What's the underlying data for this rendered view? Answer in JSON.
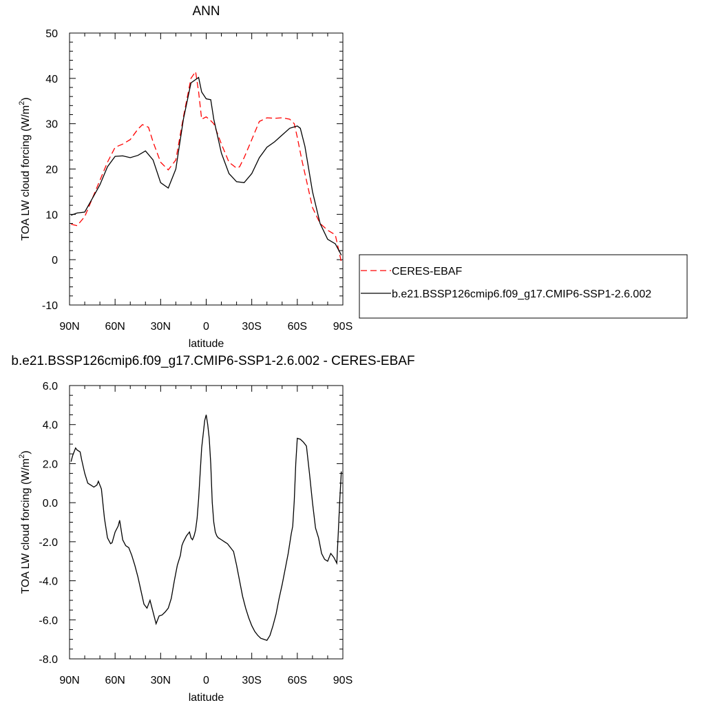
{
  "chart_data": [
    {
      "type": "line",
      "title": "ANN",
      "xlabel": "latitude",
      "ylabel": "TOA LW cloud forcing (W/m²)",
      "ylabel_main": "TOA LW cloud forcing (W/m",
      "ylabel_sup": "2",
      "ylabel_close": ")",
      "xlim": [
        90,
        -90
      ],
      "ylim": [
        -10,
        50
      ],
      "x_ticks": [
        90,
        60,
        30,
        0,
        -30,
        -60,
        -90
      ],
      "x_tick_labels": [
        "90N",
        "60N",
        "30N",
        "0",
        "30S",
        "60S",
        "90S"
      ],
      "y_ticks": [
        -10,
        0,
        10,
        20,
        30,
        40,
        50
      ],
      "y_tick_labels": [
        "-10",
        "0",
        "10",
        "20",
        "30",
        "40",
        "50"
      ],
      "legend_position": "right",
      "series": [
        {
          "name": "CERES-EBAF",
          "color": "#ff0000",
          "style": "dashed",
          "x": [
            89,
            85,
            80,
            75,
            70,
            65,
            60,
            55,
            50,
            45,
            42,
            38,
            35,
            30,
            25,
            20,
            15,
            10,
            7,
            5,
            3,
            0,
            -2,
            -5,
            -10,
            -15,
            -20,
            -22,
            -25,
            -30,
            -35,
            -40,
            -45,
            -50,
            -55,
            -58,
            -60,
            -63,
            -65,
            -70,
            -75,
            -80,
            -85,
            -89
          ],
          "y": [
            7.8,
            7.5,
            9.5,
            13.5,
            17.5,
            21.5,
            24.8,
            25.5,
            26.5,
            28.8,
            29.8,
            29.2,
            26.0,
            21.5,
            19.8,
            22.0,
            31.5,
            40.0,
            41.5,
            37.0,
            31.0,
            31.5,
            31.0,
            30.0,
            25.5,
            21.5,
            20.2,
            20.5,
            22.5,
            26.5,
            30.5,
            31.3,
            31.2,
            31.3,
            31.0,
            30.0,
            27.0,
            22.0,
            19.0,
            11.5,
            8.0,
            6.5,
            5.5,
            -0.5
          ]
        },
        {
          "name": "b.e21.BSSP126cmip6.f09_g17.CMIP6-SSP1-2.6.002",
          "color": "#000000",
          "style": "solid",
          "x": [
            89,
            85,
            80,
            75,
            70,
            65,
            60,
            55,
            50,
            45,
            40,
            35,
            30,
            25,
            20,
            15,
            10,
            5,
            3,
            0,
            -3,
            -5,
            -10,
            -15,
            -20,
            -25,
            -30,
            -35,
            -40,
            -45,
            -50,
            -55,
            -60,
            -62,
            -65,
            -70,
            -75,
            -80,
            -85,
            -89
          ],
          "y": [
            9.8,
            10.3,
            10.5,
            13.5,
            16.5,
            20.5,
            22.8,
            22.9,
            22.5,
            23.0,
            24.0,
            22.0,
            17.0,
            15.8,
            20.0,
            31.0,
            39.0,
            40.2,
            37.0,
            35.5,
            35.3,
            31.0,
            23.5,
            19.0,
            17.2,
            17.0,
            19.0,
            22.5,
            24.8,
            26.0,
            27.5,
            29.0,
            29.5,
            29.0,
            25.0,
            15.0,
            8.0,
            4.5,
            3.5,
            1.0
          ]
        }
      ]
    },
    {
      "type": "line",
      "title": "b.e21.BSSP126cmip6.f09_g17.CMIP6-SSP1-2.6.002 - CERES-EBAF",
      "xlabel": "latitude",
      "ylabel": "TOA LW cloud forcing (W/m²)",
      "ylabel_main": "TOA LW cloud forcing (W/m",
      "ylabel_sup": "2",
      "ylabel_close": ")",
      "xlim": [
        90,
        -90
      ],
      "ylim": [
        -8.0,
        6.0
      ],
      "x_ticks": [
        90,
        60,
        30,
        0,
        -30,
        -60,
        -90
      ],
      "x_tick_labels": [
        "90N",
        "60N",
        "30N",
        "0",
        "30S",
        "60S",
        "90S"
      ],
      "y_ticks": [
        -8.0,
        -6.0,
        -4.0,
        -2.0,
        0.0,
        2.0,
        4.0,
        6.0
      ],
      "y_tick_labels": [
        "-8.0",
        "-6.0",
        "-4.0",
        "-2.0",
        "0.0",
        "2.0",
        "4.0",
        "6.0"
      ],
      "series": [
        {
          "color": "#000000",
          "style": "solid",
          "x": [
            89,
            88,
            87,
            86,
            85,
            83,
            82,
            80,
            78,
            76,
            74,
            72,
            71,
            69,
            67,
            65,
            63,
            62,
            60,
            58,
            57,
            55,
            53,
            51,
            49,
            47,
            45,
            43,
            41,
            39,
            37,
            35,
            33,
            31,
            29,
            27,
            25,
            23,
            21,
            19,
            17,
            16,
            15,
            13,
            11,
            10,
            9,
            8,
            7,
            6,
            5,
            4,
            3,
            2,
            1,
            0,
            -1,
            -2,
            -3,
            -4,
            -5,
            -6,
            -7,
            -8,
            -9,
            -10,
            -12,
            -14,
            -16,
            -18,
            -20,
            -22,
            -24,
            -26,
            -28,
            -30,
            -32,
            -34,
            -36,
            -38,
            -40,
            -42,
            -44,
            -46,
            -48,
            -50,
            -52,
            -54,
            -56,
            -57,
            -58,
            -59,
            -60,
            -62,
            -64,
            -66,
            -68,
            -70,
            -72,
            -74,
            -76,
            -78,
            -80,
            -82,
            -84,
            -86,
            -87,
            -88,
            -89
          ],
          "y": [
            2.1,
            2.4,
            2.6,
            2.8,
            2.7,
            2.6,
            2.2,
            1.5,
            1.0,
            0.9,
            0.8,
            0.9,
            1.1,
            0.7,
            -0.8,
            -1.8,
            -2.1,
            -2.05,
            -1.5,
            -1.2,
            -0.9,
            -1.9,
            -2.2,
            -2.3,
            -2.7,
            -3.2,
            -3.8,
            -4.5,
            -5.2,
            -5.4,
            -5.0,
            -5.6,
            -6.2,
            -5.8,
            -5.75,
            -5.6,
            -5.4,
            -4.9,
            -4.0,
            -3.2,
            -2.7,
            -2.2,
            -2.0,
            -1.7,
            -1.5,
            -1.8,
            -1.9,
            -1.7,
            -1.4,
            -0.8,
            0.2,
            1.5,
            2.8,
            3.5,
            4.2,
            4.5,
            4.0,
            3.3,
            2.0,
            0.0,
            -1.0,
            -1.5,
            -1.7,
            -1.8,
            -1.85,
            -1.9,
            -2.0,
            -2.1,
            -2.3,
            -2.5,
            -3.2,
            -4.0,
            -4.8,
            -5.4,
            -5.9,
            -6.3,
            -6.6,
            -6.8,
            -6.95,
            -7.0,
            -7.05,
            -6.8,
            -6.3,
            -5.7,
            -4.9,
            -4.2,
            -3.4,
            -2.6,
            -1.6,
            -1.2,
            0.1,
            2.0,
            3.3,
            3.25,
            3.1,
            2.9,
            1.5,
            0.0,
            -1.3,
            -1.8,
            -2.6,
            -2.9,
            -3.0,
            -2.6,
            -2.8,
            -3.1,
            -1.5,
            0.2,
            1.6
          ]
        }
      ]
    }
  ]
}
